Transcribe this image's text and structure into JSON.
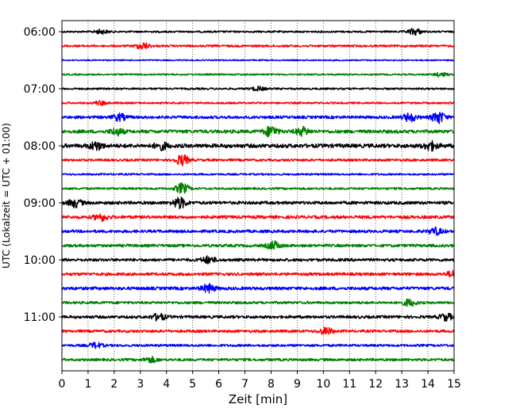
{
  "chart_data": {
    "type": "line",
    "title": "",
    "xlabel": "Zeit  [min]",
    "ylabel": "UTC (Lokalzeit = UTC + 01:00)",
    "xlim": [
      0,
      15
    ],
    "x_ticks": [
      "0",
      "1",
      "2",
      "3",
      "4",
      "5",
      "6",
      "7",
      "8",
      "9",
      "10",
      "11",
      "12",
      "13",
      "14",
      "15"
    ],
    "y_ticks": [
      "06:00",
      "07:00",
      "08:00",
      "09:00",
      "10:00",
      "11:00"
    ],
    "grid": "vertical dotted lines at each minute",
    "row_interval_minutes": 15,
    "color_cycle": [
      "#000000",
      "#ff0000",
      "#0000ff",
      "#008000"
    ],
    "series": [
      {
        "time": "06:00",
        "color": "#000000",
        "amplitude": 0.14,
        "events": [
          {
            "x": 1.5,
            "amp": 0.3
          },
          {
            "x": 13.5,
            "amp": 0.5
          }
        ]
      },
      {
        "time": "06:15",
        "color": "#ff0000",
        "amplitude": 0.16,
        "events": [
          {
            "x": 3.1,
            "amp": 0.5
          }
        ]
      },
      {
        "time": "06:30",
        "color": "#0000ff",
        "amplitude": 0.1,
        "events": []
      },
      {
        "time": "06:45",
        "color": "#008000",
        "amplitude": 0.12,
        "events": [
          {
            "x": 14.5,
            "amp": 0.3
          }
        ]
      },
      {
        "time": "07:00",
        "color": "#000000",
        "amplitude": 0.14,
        "events": [
          {
            "x": 7.5,
            "amp": 0.3
          }
        ]
      },
      {
        "time": "07:15",
        "color": "#ff0000",
        "amplitude": 0.14,
        "events": [
          {
            "x": 1.5,
            "amp": 0.3
          }
        ]
      },
      {
        "time": "07:30",
        "color": "#0000ff",
        "amplitude": 0.22,
        "events": [
          {
            "x": 2.2,
            "amp": 0.5
          },
          {
            "x": 13.3,
            "amp": 0.6
          },
          {
            "x": 14.4,
            "amp": 0.9
          }
        ]
      },
      {
        "time": "07:45",
        "color": "#008000",
        "amplitude": 0.26,
        "events": [
          {
            "x": 2.1,
            "amp": 0.5
          },
          {
            "x": 8.0,
            "amp": 0.8
          },
          {
            "x": 9.2,
            "amp": 0.6
          }
        ]
      },
      {
        "time": "08:00",
        "color": "#000000",
        "amplitude": 0.3,
        "events": [
          {
            "x": 1.3,
            "amp": 0.6
          },
          {
            "x": 3.8,
            "amp": 0.5
          },
          {
            "x": 14.1,
            "amp": 0.6
          }
        ]
      },
      {
        "time": "08:15",
        "color": "#ff0000",
        "amplitude": 0.18,
        "events": [
          {
            "x": 4.6,
            "amp": 0.8
          }
        ]
      },
      {
        "time": "08:30",
        "color": "#0000ff",
        "amplitude": 0.14,
        "events": []
      },
      {
        "time": "08:45",
        "color": "#008000",
        "amplitude": 0.16,
        "events": [
          {
            "x": 4.6,
            "amp": 0.8
          }
        ]
      },
      {
        "time": "09:00",
        "color": "#000000",
        "amplitude": 0.24,
        "events": [
          {
            "x": 0.5,
            "amp": 0.6
          },
          {
            "x": 4.5,
            "amp": 0.8
          }
        ]
      },
      {
        "time": "09:15",
        "color": "#ff0000",
        "amplitude": 0.24,
        "events": [
          {
            "x": 1.5,
            "amp": 0.5
          }
        ]
      },
      {
        "time": "09:30",
        "color": "#0000ff",
        "amplitude": 0.22,
        "events": [
          {
            "x": 14.3,
            "amp": 0.5
          }
        ]
      },
      {
        "time": "09:45",
        "color": "#008000",
        "amplitude": 0.22,
        "events": [
          {
            "x": 8.1,
            "amp": 0.6
          }
        ]
      },
      {
        "time": "10:00",
        "color": "#000000",
        "amplitude": 0.22,
        "events": [
          {
            "x": 5.6,
            "amp": 0.5
          }
        ]
      },
      {
        "time": "10:15",
        "color": "#ff0000",
        "amplitude": 0.22,
        "events": [
          {
            "x": 15.0,
            "amp": 0.5
          }
        ]
      },
      {
        "time": "10:30",
        "color": "#0000ff",
        "amplitude": 0.24,
        "events": [
          {
            "x": 5.6,
            "amp": 0.6
          }
        ]
      },
      {
        "time": "10:45",
        "color": "#008000",
        "amplitude": 0.2,
        "events": [
          {
            "x": 13.3,
            "amp": 0.5
          }
        ]
      },
      {
        "time": "11:00",
        "color": "#000000",
        "amplitude": 0.22,
        "events": [
          {
            "x": 3.7,
            "amp": 0.5
          },
          {
            "x": 14.7,
            "amp": 0.5
          }
        ]
      },
      {
        "time": "11:15",
        "color": "#ff0000",
        "amplitude": 0.2,
        "events": [
          {
            "x": 10.1,
            "amp": 0.5
          }
        ]
      },
      {
        "time": "11:30",
        "color": "#0000ff",
        "amplitude": 0.18,
        "events": [
          {
            "x": 1.3,
            "amp": 0.4
          }
        ]
      },
      {
        "time": "11:45",
        "color": "#008000",
        "amplitude": 0.2,
        "events": [
          {
            "x": 3.4,
            "amp": 0.4
          }
        ]
      }
    ]
  }
}
